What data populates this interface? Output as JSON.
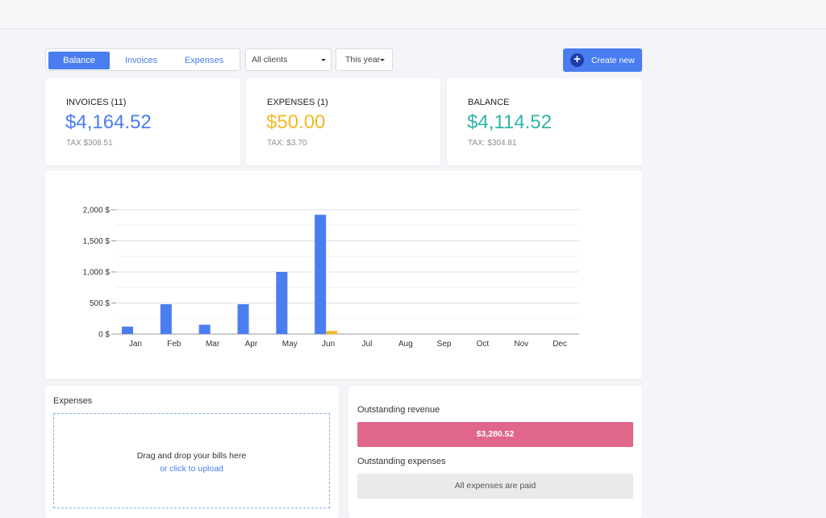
{
  "tabs": [
    {
      "label": "Balance",
      "active": true
    },
    {
      "label": "Invoices",
      "active": false
    },
    {
      "label": "Expenses",
      "active": false
    }
  ],
  "filters": {
    "client": "All clients",
    "period": "This year"
  },
  "create_button": {
    "label": "Create new",
    "icon": "plus-icon"
  },
  "stats": {
    "invoices": {
      "title": "INVOICES (11)",
      "value": "$4,164.52",
      "tax": "TAX $308.51",
      "color": "#4a7df0"
    },
    "expenses": {
      "title": "EXPENSES (1)",
      "value": "$50.00",
      "tax": "TAX: $3.70",
      "color": "#f2b824"
    },
    "balance": {
      "title": "BALANCE",
      "value": "$4,114.52",
      "tax": "TAX: $304.81",
      "color": "#2eb5a6"
    }
  },
  "chart_data": {
    "type": "bar",
    "categories": [
      "Jan",
      "Feb",
      "Mar",
      "Apr",
      "May",
      "Jun",
      "Jul",
      "Aug",
      "Sep",
      "Oct",
      "Nov",
      "Dec"
    ],
    "series": [
      {
        "values": [
          120,
          480,
          150,
          480,
          1000,
          1920,
          0,
          0,
          0,
          0,
          0,
          0
        ],
        "color": "#4a7df0"
      },
      {
        "values": [
          0,
          0,
          0,
          0,
          0,
          50,
          0,
          0,
          0,
          0,
          0,
          0
        ],
        "color": "#f2b824"
      }
    ],
    "yticks": [
      "0 $",
      "500 $",
      "1,000 $",
      "1,500 $",
      "2,000 $"
    ],
    "ylim": [
      0,
      2000
    ],
    "grid": true
  },
  "expenses_panel": {
    "title": "Expenses",
    "drop_text": "Drag and drop your bills here",
    "upload_link": "or click to upload"
  },
  "outstanding": {
    "revenue_title": "Outstanding revenue",
    "revenue_value": "$3,280.52",
    "revenue_color": "#e0668a",
    "expenses_title": "Outstanding expenses",
    "expenses_status": "All expenses are paid"
  }
}
